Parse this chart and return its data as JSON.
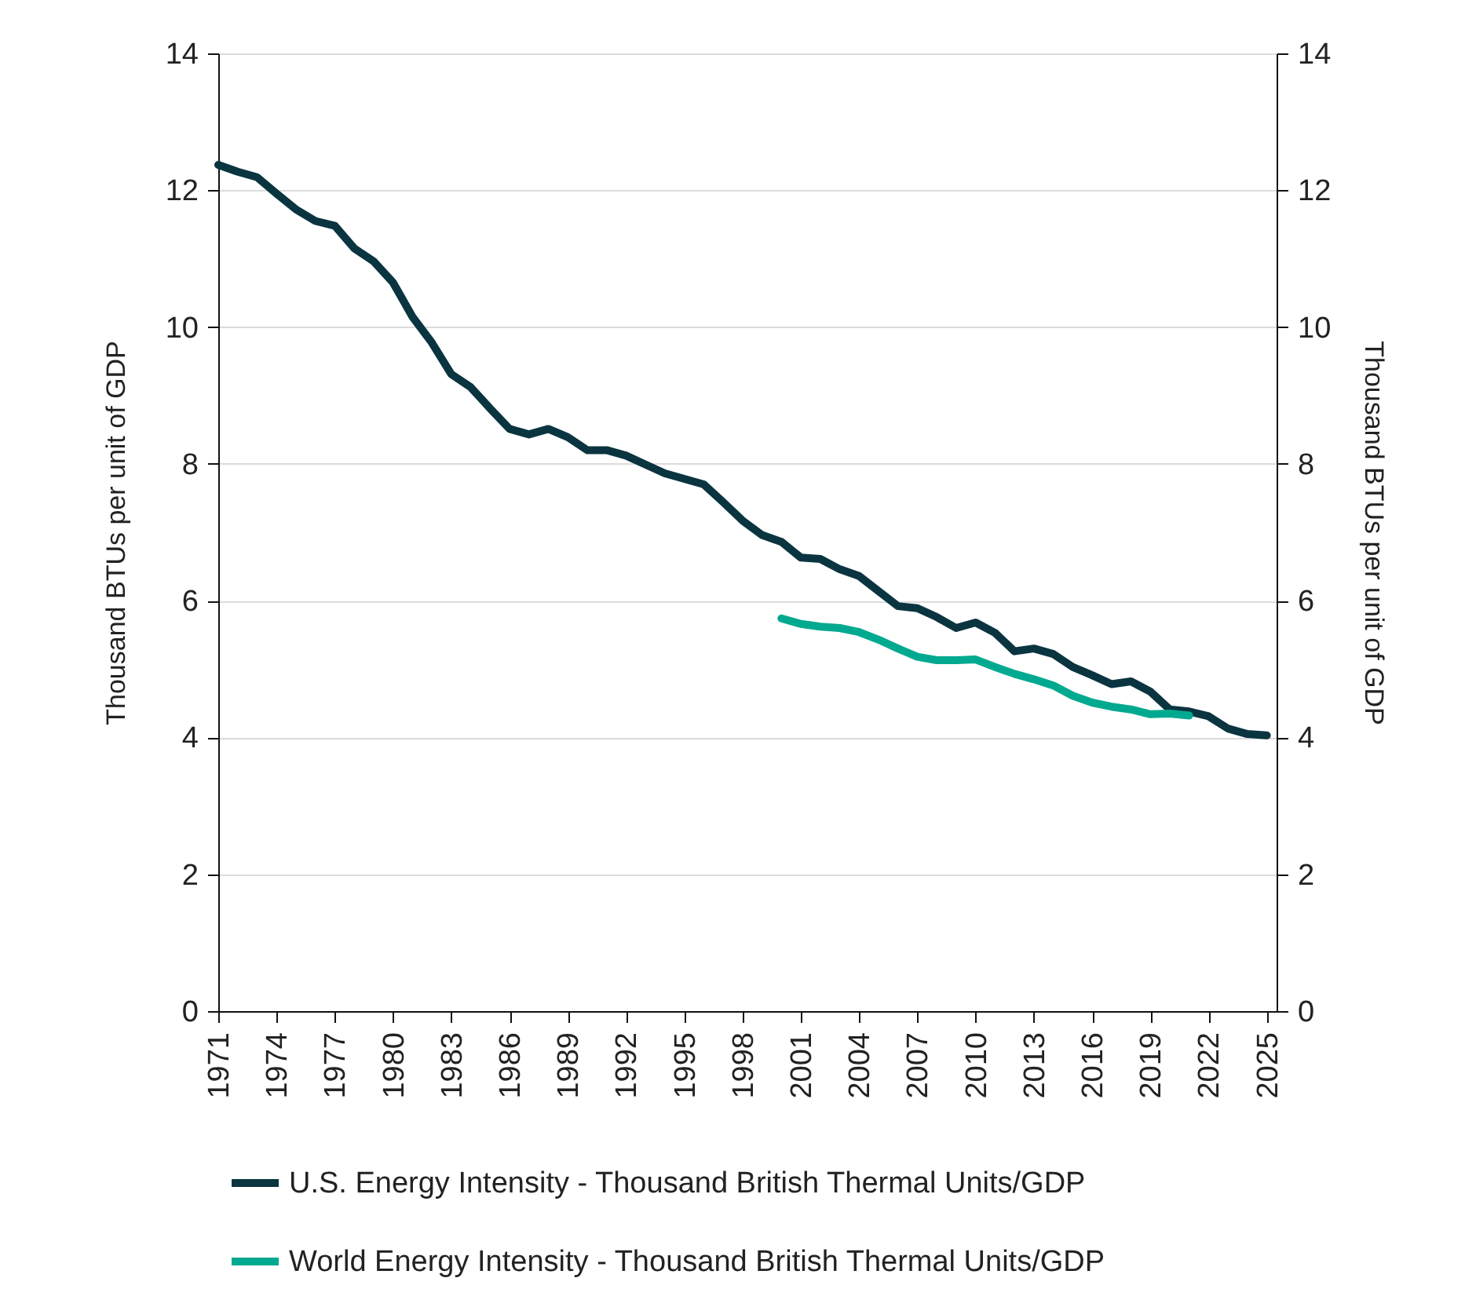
{
  "chart_data": {
    "type": "line",
    "ylabel": "Thousand BTUs per unit of GDP",
    "y2label": "Thousand BTUs per unit of GDP",
    "x": [
      1971,
      1972,
      1973,
      1974,
      1975,
      1976,
      1977,
      1978,
      1979,
      1980,
      1981,
      1982,
      1983,
      1984,
      1985,
      1986,
      1987,
      1988,
      1989,
      1990,
      1991,
      1992,
      1993,
      1994,
      1995,
      1996,
      1997,
      1998,
      1999,
      2000,
      2001,
      2002,
      2003,
      2004,
      2005,
      2006,
      2007,
      2008,
      2009,
      2010,
      2011,
      2012,
      2013,
      2014,
      2015,
      2016,
      2017,
      2018,
      2019,
      2020,
      2021,
      2022,
      2023,
      2024,
      2025
    ],
    "series": [
      {
        "name": "U.S. Energy Intensity - Thousand British Thermal Units/GDP",
        "color": "#0a3440",
        "values": [
          12.37,
          12.27,
          12.19,
          11.95,
          11.72,
          11.55,
          11.48,
          11.15,
          10.96,
          10.65,
          10.15,
          9.77,
          9.31,
          9.12,
          8.81,
          8.51,
          8.43,
          8.51,
          8.39,
          8.2,
          8.2,
          8.12,
          7.99,
          7.86,
          7.78,
          7.7,
          7.44,
          7.17,
          6.96,
          6.86,
          6.63,
          6.61,
          6.46,
          6.36,
          6.14,
          5.92,
          5.89,
          5.76,
          5.6,
          5.68,
          5.53,
          5.26,
          5.3,
          5.22,
          5.03,
          4.91,
          4.78,
          4.82,
          4.67,
          4.41,
          4.38,
          4.31,
          4.13,
          4.05,
          4.03
        ]
      },
      {
        "name": "World Energy Intensity - Thousand British Thermal Units/GDP",
        "color": "#00a98f",
        "x": [
          2000,
          2001,
          2002,
          2003,
          2004,
          2005,
          2006,
          2007,
          2008,
          2009,
          2010,
          2011,
          2012,
          2013,
          2014,
          2015,
          2016,
          2017,
          2018,
          2019,
          2020,
          2021
        ],
        "values": [
          5.74,
          5.66,
          5.62,
          5.6,
          5.54,
          5.43,
          5.3,
          5.18,
          5.13,
          5.13,
          5.14,
          5.03,
          4.93,
          4.85,
          4.76,
          4.61,
          4.51,
          4.45,
          4.41,
          4.34,
          4.35,
          4.32
        ]
      }
    ],
    "xlim": [
      1971,
      2025.5
    ],
    "xticks": [
      1971,
      1974,
      1977,
      1980,
      1983,
      1986,
      1989,
      1992,
      1995,
      1998,
      2001,
      2004,
      2007,
      2010,
      2013,
      2016,
      2019,
      2022,
      2025
    ],
    "ylim": [
      0,
      14
    ],
    "yticks": [
      0,
      2,
      4,
      6,
      8,
      10,
      12,
      14
    ],
    "y2lim": [
      0,
      14
    ],
    "y2ticks": [
      0,
      2,
      4,
      6,
      8,
      10,
      12,
      14
    ],
    "grid": "y",
    "legend": "bottom"
  }
}
